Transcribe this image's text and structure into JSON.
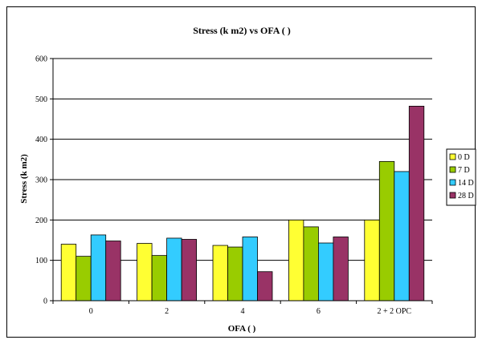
{
  "chart_data": {
    "type": "bar",
    "title": "Stress (k    m2) vs    OFA (   )",
    "xlabel": "OFA (   )",
    "ylabel": "Stress (k    m2)",
    "ylim": [
      0,
      600
    ],
    "yticks": [
      "0",
      "100",
      "200",
      "300",
      "400",
      "500",
      "600"
    ],
    "categories": [
      "0",
      "2",
      "4",
      "6",
      "2 + 2 OPC"
    ],
    "grid": true,
    "legend_position": "right",
    "series": [
      {
        "name": "0 D",
        "color": "#FFFF33",
        "values": [
          140,
          142,
          137,
          200,
          200
        ]
      },
      {
        "name": "7 D",
        "color": "#99CC00",
        "values": [
          110,
          112,
          133,
          183,
          345
        ]
      },
      {
        "name": "14 D",
        "color": "#33CCFF",
        "values": [
          163,
          155,
          158,
          143,
          320
        ]
      },
      {
        "name": "28 D",
        "color": "#993366",
        "values": [
          148,
          152,
          72,
          158,
          482
        ]
      }
    ]
  }
}
